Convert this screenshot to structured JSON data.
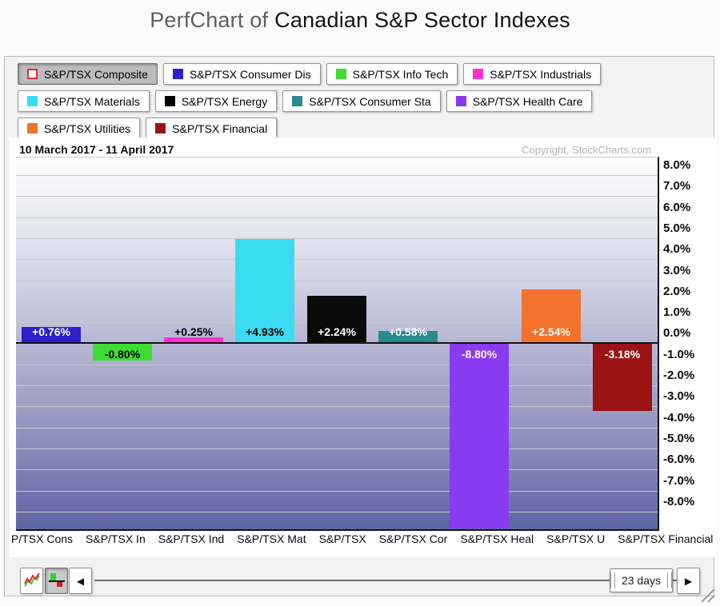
{
  "title": {
    "prefix": "PerfChart of",
    "main": "Canadian S&P Sector Indexes"
  },
  "copyright": "Copyright, StockCharts.com",
  "legend": {
    "rows": [
      [
        {
          "label": "S&P/TSX Composite",
          "swatch": "#ffffff",
          "swatch_border": "#e03030",
          "pressed": true
        },
        {
          "label": "S&P/TSX Consumer Dis",
          "swatch": "#2b22cc",
          "pressed": false
        },
        {
          "label": "S&P/TSX Info Tech",
          "swatch": "#3ddd33",
          "pressed": false
        },
        {
          "label": "S&P/TSX Industrials",
          "swatch": "#ff30d0",
          "pressed": false
        }
      ],
      [
        {
          "label": "S&P/TSX Materials",
          "swatch": "#3adcf2",
          "pressed": false
        },
        {
          "label": "S&P/TSX Energy",
          "swatch": "#000000",
          "pressed": false
        },
        {
          "label": "S&P/TSX Consumer Sta",
          "swatch": "#2b8a8d",
          "pressed": false
        },
        {
          "label": "S&P/TSX Health Care",
          "swatch": "#8a3af0",
          "pressed": false
        }
      ],
      [
        {
          "label": "S&P/TSX Utilities",
          "swatch": "#f3722d",
          "pressed": false
        },
        {
          "label": "S&P/TSX Financial",
          "swatch": "#9c1313",
          "pressed": false
        }
      ]
    ]
  },
  "chart_data": {
    "type": "bar",
    "title": "PerfChart of Canadian S&P Sector Indexes",
    "period_label": "10 March 2017 - 11 April 2017",
    "categories": [
      "S&P/TSX Consumer Dis",
      "S&P/TSX Info Tech",
      "S&P/TSX Industrials",
      "S&P/TSX Materials",
      "S&P/TSX Energy",
      "S&P/TSX Consumer Sta",
      "S&P/TSX Health Care",
      "S&P/TSX Utilities",
      "S&P/TSX Financial"
    ],
    "values": [
      0.76,
      -0.8,
      0.25,
      4.93,
      2.24,
      0.58,
      -8.8,
      2.54,
      -3.18
    ],
    "value_labels": [
      "+0.76%",
      "-0.80%",
      "+0.25%",
      "+4.93%",
      "+2.24%",
      "+0.58%",
      "-8.80%",
      "+2.54%",
      "-3.18%"
    ],
    "bar_colors": [
      "#2b22cc",
      "#3ddd33",
      "#ff30d0",
      "#3adcf2",
      "#0a0a0a",
      "#2b8a8d",
      "#8a3af0",
      "#f3722d",
      "#9c1313"
    ],
    "value_label_colors": [
      "#ffffff",
      "#000000",
      "#000000",
      "#000000",
      "#ffffff",
      "#ffffff",
      "#ffffff",
      "#ffffff",
      "#ffffff"
    ],
    "x_tick_labels_visible": [
      "P/TSX Cons",
      "S&P/TSX In",
      "S&P/TSX Ind",
      "S&P/TSX Mat",
      "S&P/TSX",
      "S&P/TSX Cor",
      "S&P/TSX Heal",
      "S&P/TSX U",
      "S&P/TSX Financial"
    ],
    "y_tick_labels": [
      "8.0%",
      "7.0%",
      "6.0%",
      "5.0%",
      "4.0%",
      "3.0%",
      "2.0%",
      "1.0%",
      "0.0%",
      "-1.0%",
      "-2.0%",
      "-3.0%",
      "-4.0%",
      "-5.0%",
      "-6.0%",
      "-7.0%",
      "-8.0%"
    ],
    "y_tick_values": [
      8,
      7,
      6,
      5,
      4,
      3,
      2,
      1,
      0,
      -1,
      -2,
      -3,
      -4,
      -5,
      -6,
      -7,
      -8
    ],
    "ylim": [
      -8.84,
      8.84
    ],
    "y_axis_side": "right",
    "grid": true,
    "legend_position": "top",
    "background_gradient": [
      "#ffffff",
      "#5f64a4"
    ]
  },
  "controls": {
    "left_arrow": "◀",
    "right_arrow": "▶",
    "range_label": "23 days",
    "chart_type_buttons": [
      {
        "name": "line-chart",
        "pressed": false
      },
      {
        "name": "bar-chart",
        "pressed": true
      }
    ]
  }
}
